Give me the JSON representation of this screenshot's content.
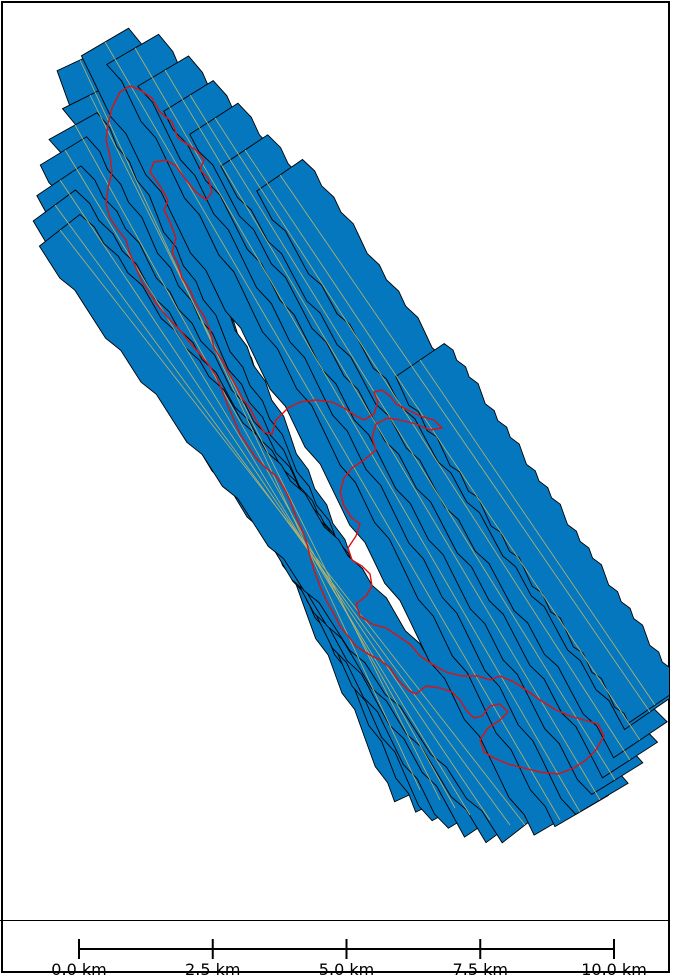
{
  "map": {
    "swath_fill_color": "#0477be",
    "swath_edge_color": "#000000",
    "trackline_color": "#b9b56a",
    "boundary_color": "#e01010"
  },
  "scale_bar": {
    "ticks": [
      {
        "value_km": 0.0,
        "label": "0.0 km"
      },
      {
        "value_km": 2.5,
        "label": "2.5 km"
      },
      {
        "value_km": 5.0,
        "label": "5.0 km"
      },
      {
        "value_km": 7.5,
        "label": "7.5 km"
      },
      {
        "value_km": 10.0,
        "label": "10.0 km"
      }
    ]
  }
}
